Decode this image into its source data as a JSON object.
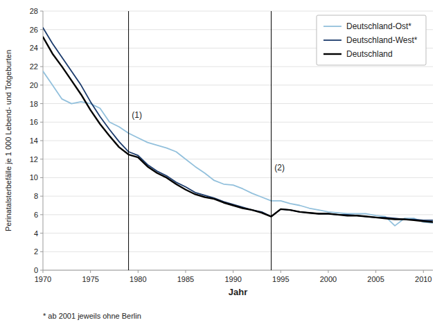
{
  "chart_data": {
    "type": "line",
    "x": [
      1970,
      1971,
      1972,
      1973,
      1974,
      1975,
      1976,
      1977,
      1978,
      1979,
      1980,
      1981,
      1982,
      1983,
      1984,
      1985,
      1986,
      1987,
      1988,
      1989,
      1990,
      1991,
      1992,
      1993,
      1994,
      1995,
      1996,
      1997,
      1998,
      1999,
      2000,
      2001,
      2002,
      2003,
      2004,
      2005,
      2006,
      2007,
      2008,
      2009,
      2010,
      2011
    ],
    "series": [
      {
        "name": "Deutschland-Ost*",
        "color": "#92c0dc",
        "values": [
          21.5,
          20.0,
          18.5,
          18.0,
          18.2,
          18.0,
          17.5,
          16.0,
          15.5,
          14.8,
          14.3,
          13.8,
          13.5,
          13.2,
          12.8,
          12.0,
          11.2,
          10.5,
          9.7,
          9.3,
          9.2,
          8.8,
          8.3,
          7.9,
          7.5,
          7.5,
          7.2,
          7.0,
          6.7,
          6.5,
          6.3,
          6.2,
          6.1,
          6.1,
          6.1,
          5.9,
          5.8,
          4.8,
          5.6,
          5.6,
          5.2,
          5.1
        ]
      },
      {
        "name": "Deutschland-West*",
        "color": "#1a3a6b",
        "values": [
          26.2,
          24.5,
          23.0,
          21.5,
          20.0,
          18.2,
          16.6,
          15.2,
          13.9,
          12.8,
          12.4,
          11.4,
          10.7,
          10.2,
          9.5,
          9.0,
          8.4,
          8.1,
          7.8,
          7.4,
          7.1,
          6.8,
          6.5,
          6.3,
          5.8,
          6.6,
          6.5,
          6.3,
          6.2,
          6.1,
          6.1,
          6.0,
          6.0,
          5.9,
          5.8,
          5.7,
          5.7,
          5.6,
          5.5,
          5.5,
          5.4,
          5.4
        ]
      },
      {
        "name": "Deutschland",
        "color": "#000000",
        "values": [
          25.2,
          23.4,
          22.0,
          20.5,
          19.0,
          17.3,
          15.8,
          14.5,
          13.3,
          12.5,
          12.2,
          11.2,
          10.5,
          10.0,
          9.3,
          8.7,
          8.2,
          7.9,
          7.7,
          7.3,
          7.0,
          6.7,
          6.5,
          6.2,
          5.8,
          6.6,
          6.5,
          6.3,
          6.2,
          6.1,
          6.1,
          6.0,
          5.9,
          5.9,
          5.8,
          5.7,
          5.6,
          5.5,
          5.5,
          5.4,
          5.3,
          5.2
        ]
      }
    ],
    "x_label": "Jahr",
    "y_label": "Perinatalsterbefälle je 1 000 Lebend- und Totgeburten",
    "xlim": [
      1970,
      2011
    ],
    "xticks": [
      1970,
      1975,
      1980,
      1985,
      1990,
      1995,
      2000,
      2005,
      2010
    ],
    "ylim": [
      0,
      28
    ],
    "yticks": [
      0,
      2,
      4,
      6,
      8,
      10,
      12,
      14,
      16,
      18,
      20,
      22,
      24,
      26,
      28
    ],
    "vlines": [
      {
        "x": 1979,
        "label": "(1)",
        "label_x": 1979.2,
        "label_y": 16.5
      },
      {
        "x": 1994,
        "label": "(2)",
        "label_x": 1994.2,
        "label_y": 10.8
      }
    ],
    "footnote": "*   ab 2001 jeweils ohne Berlin",
    "grid": "y",
    "legend": "upper right"
  }
}
